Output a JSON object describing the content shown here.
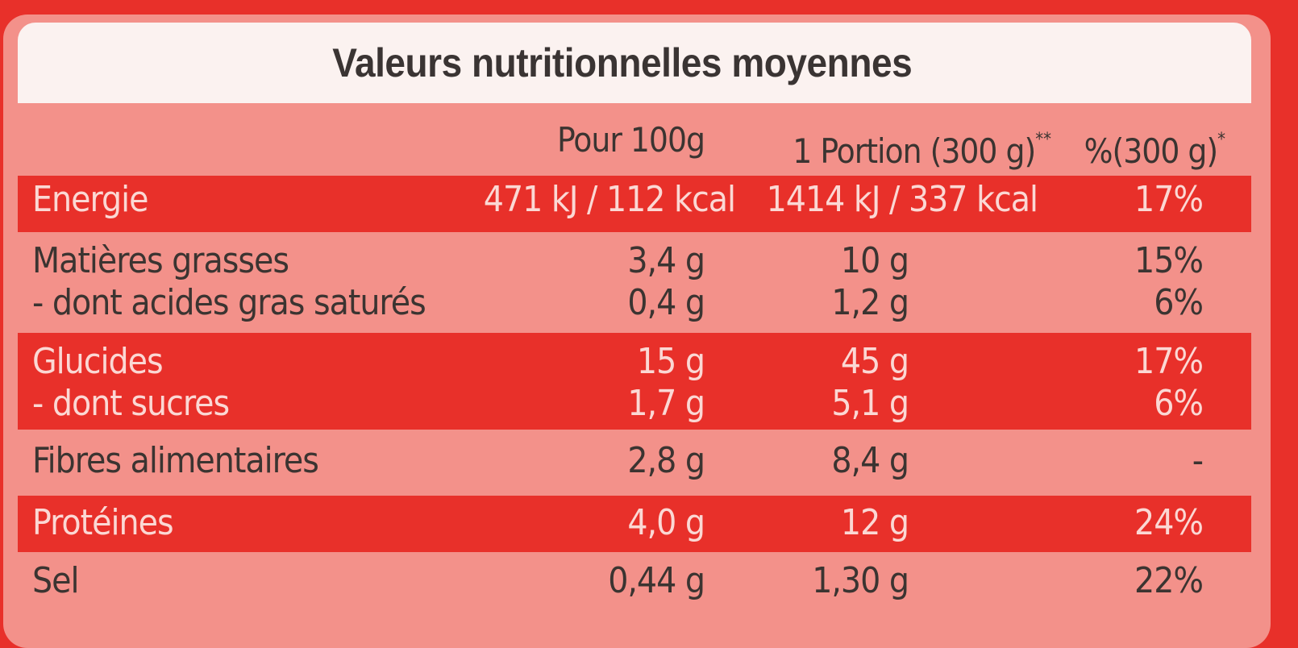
{
  "title": "Valeurs nutritionnelles moyennes",
  "header": {
    "per100": "Pour 100g",
    "portion": "1 Portion (300 g)",
    "portion_mark": "**",
    "pct": "%(300 g)",
    "pct_mark": "*"
  },
  "rows": {
    "energie": {
      "label": "Energie",
      "per100": "471 kJ / 112 kcal",
      "portion": "1414 kJ / 337 kcal",
      "pct": "17%"
    },
    "matieres_grasses": {
      "label": "Matières grasses",
      "per100": "3,4 g",
      "portion": "10 g",
      "pct": "15%"
    },
    "acides_gras_satures": {
      "label": "- dont acides gras saturés",
      "per100": "0,4 g",
      "portion": "1,2 g",
      "pct": "6%"
    },
    "glucides": {
      "label": "Glucides",
      "per100": "15 g",
      "portion": "45 g",
      "pct": "17%"
    },
    "sucres": {
      "label": "- dont sucres",
      "per100": "1,7 g",
      "portion": "5,1 g",
      "pct": "6%"
    },
    "fibres": {
      "label": "Fibres alimentaires",
      "per100": "2,8 g",
      "portion": "8,4 g",
      "pct": "-"
    },
    "proteines": {
      "label": "Protéines",
      "per100": "4,0 g",
      "portion": "12 g",
      "pct": "24%"
    },
    "sel": {
      "label": "Sel",
      "per100": "0,44 g",
      "portion": "1,30 g",
      "pct": "22%"
    }
  },
  "colors": {
    "background_red": "#e8302a",
    "panel_pink": "#f3918a",
    "title_bar": "#fbf2f0",
    "dark_text": "#3b3431",
    "light_text": "#fbd8d4"
  }
}
